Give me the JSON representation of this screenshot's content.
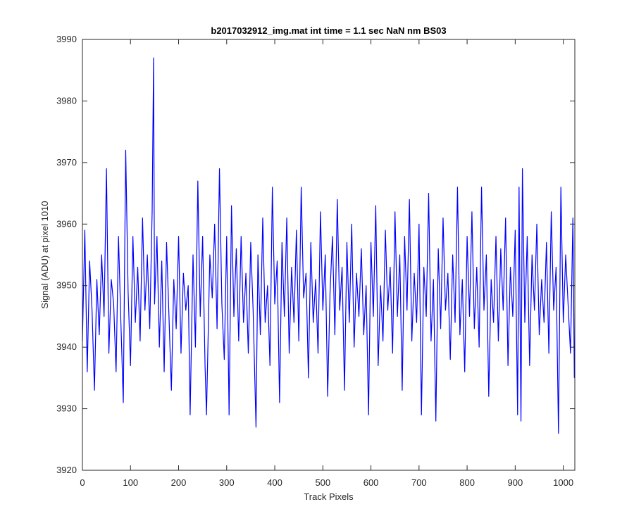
{
  "chart_data": {
    "type": "line",
    "title": "b2017032912_img.mat int time = 1.1 sec  NaN nm BS03",
    "xlabel": "Track Pixels",
    "ylabel": "Signal (ADU) at pixel 1010",
    "xlim": [
      0,
      1024
    ],
    "ylim": [
      3920,
      3990
    ],
    "xticks": [
      0,
      100,
      200,
      300,
      400,
      500,
      600,
      700,
      800,
      900,
      1000
    ],
    "yticks": [
      3920,
      3930,
      3940,
      3950,
      3960,
      3970,
      3980,
      3990
    ],
    "grid": false,
    "line_color": "#0000ff",
    "series": [
      {
        "x": [
          0,
          5,
          10,
          15,
          20,
          25,
          30,
          35,
          40,
          45,
          50,
          55,
          60,
          65,
          70,
          75,
          80,
          85,
          90,
          95,
          100,
          105,
          110,
          115,
          120,
          125,
          130,
          135,
          140,
          145,
          148,
          150,
          155,
          160,
          165,
          170,
          175,
          180,
          185,
          190,
          195,
          200,
          205,
          210,
          215,
          220,
          224,
          230,
          235,
          240,
          245,
          250,
          255,
          258,
          265,
          270,
          275,
          280,
          285,
          290,
          295,
          300,
          305,
          310,
          315,
          320,
          325,
          330,
          335,
          340,
          345,
          350,
          355,
          361,
          365,
          370,
          375,
          380,
          385,
          390,
          395,
          400,
          405,
          410,
          415,
          420,
          425,
          430,
          435,
          440,
          445,
          450,
          455,
          460,
          465,
          470,
          475,
          480,
          485,
          490,
          495,
          500,
          505,
          510,
          515,
          520,
          525,
          530,
          535,
          540,
          545,
          550,
          555,
          560,
          565,
          570,
          575,
          580,
          585,
          590,
          595,
          600,
          605,
          610,
          615,
          620,
          625,
          630,
          635,
          640,
          645,
          650,
          655,
          660,
          665,
          670,
          675,
          680,
          685,
          690,
          695,
          700,
          705,
          710,
          715,
          720,
          725,
          730,
          735,
          740,
          745,
          750,
          755,
          760,
          765,
          770,
          775,
          780,
          785,
          790,
          795,
          800,
          805,
          810,
          815,
          820,
          825,
          830,
          835,
          840,
          845,
          850,
          855,
          860,
          865,
          870,
          875,
          880,
          885,
          890,
          895,
          900,
          905,
          908,
          912,
          915,
          920,
          925,
          930,
          935,
          940,
          945,
          950,
          955,
          960,
          965,
          970,
          975,
          980,
          985,
          990,
          995,
          1000,
          1005,
          1010,
          1015,
          1020,
          1023
        ],
        "values": [
          3941,
          3959,
          3936,
          3954,
          3946,
          3933,
          3951,
          3942,
          3955,
          3945,
          3969,
          3939,
          3951,
          3947,
          3936,
          3958,
          3944,
          3931,
          3972,
          3949,
          3937,
          3958,
          3944,
          3953,
          3941,
          3961,
          3946,
          3955,
          3943,
          3962,
          3987,
          3947,
          3958,
          3940,
          3954,
          3936,
          3957,
          3945,
          3933,
          3951,
          3943,
          3958,
          3939,
          3952,
          3946,
          3950,
          3929,
          3955,
          3940,
          3967,
          3945,
          3958,
          3937,
          3929,
          3955,
          3948,
          3960,
          3943,
          3969,
          3947,
          3938,
          3958,
          3929,
          3963,
          3945,
          3956,
          3941,
          3958,
          3944,
          3952,
          3939,
          3957,
          3946,
          3927,
          3955,
          3942,
          3961,
          3944,
          3950,
          3937,
          3966,
          3947,
          3954,
          3931,
          3957,
          3945,
          3961,
          3939,
          3953,
          3944,
          3959,
          3941,
          3966,
          3948,
          3952,
          3935,
          3957,
          3944,
          3951,
          3939,
          3962,
          3946,
          3955,
          3932,
          3949,
          3958,
          3942,
          3964,
          3946,
          3953,
          3933,
          3957,
          3944,
          3960,
          3940,
          3952,
          3945,
          3956,
          3942,
          3950,
          3929,
          3957,
          3945,
          3963,
          3937,
          3950,
          3941,
          3959,
          3946,
          3953,
          3939,
          3962,
          3945,
          3955,
          3933,
          3958,
          3946,
          3964,
          3941,
          3952,
          3944,
          3960,
          3929,
          3953,
          3945,
          3965,
          3941,
          3951,
          3928,
          3956,
          3943,
          3961,
          3946,
          3952,
          3938,
          3955,
          3944,
          3966,
          3942,
          3951,
          3936,
          3958,
          3945,
          3962,
          3943,
          3953,
          3940,
          3966,
          3946,
          3955,
          3932,
          3951,
          3944,
          3958,
          3941,
          3956,
          3946,
          3961,
          3937,
          3953,
          3945,
          3959,
          3929,
          3966,
          3928,
          3969,
          3944,
          3958,
          3937,
          3955,
          3946,
          3960,
          3942,
          3951,
          3944,
          3957,
          3939,
          3962,
          3946,
          3953,
          3926,
          3966,
          3944,
          3955,
          3947,
          3939,
          3961,
          3935
        ]
      }
    ]
  }
}
